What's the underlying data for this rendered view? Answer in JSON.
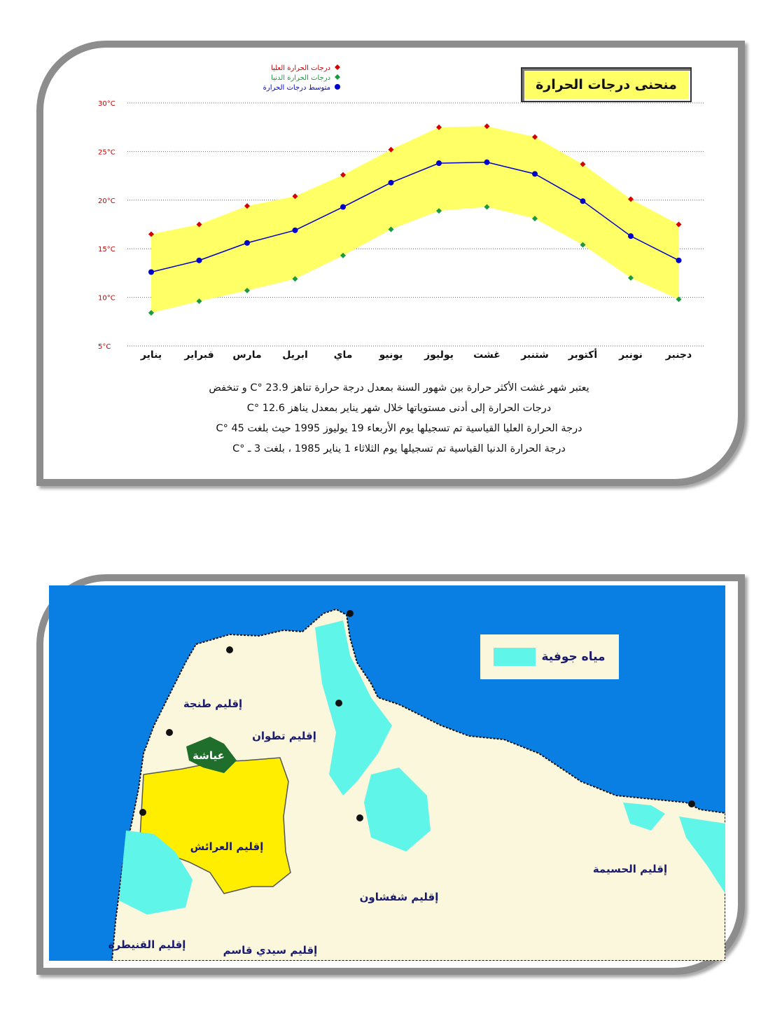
{
  "chart_data": {
    "type": "line",
    "title": "منحنى درجات الحرارة",
    "categories": [
      "يناير",
      "فبراير",
      "مارس",
      "ابريل",
      "ماي",
      "يونيو",
      "يوليوز",
      "غشت",
      "شتنبر",
      "أكتوبر",
      "نونبر",
      "دجنبر"
    ],
    "series": [
      {
        "name": "درجات الحرارة العليا",
        "color": "#d40000",
        "marker": "diamond",
        "values": [
          16.5,
          17.5,
          19.4,
          20.4,
          22.6,
          25.2,
          27.5,
          27.6,
          26.5,
          23.7,
          20.1,
          17.5
        ]
      },
      {
        "name": "درجات الحرارة الدنيا",
        "color": "#1a9a40",
        "marker": "diamond",
        "values": [
          8.4,
          9.6,
          10.7,
          11.9,
          14.3,
          17.0,
          18.9,
          19.3,
          18.1,
          15.4,
          12.0,
          9.8
        ]
      },
      {
        "name": "متوسط درجات الحرارة",
        "color": "#0000cc",
        "marker": "circle",
        "values": [
          12.6,
          13.8,
          15.6,
          16.9,
          19.3,
          21.8,
          23.8,
          23.9,
          22.7,
          19.9,
          16.3,
          13.8
        ]
      }
    ],
    "band_color": "#ffff66",
    "ylim": [
      5,
      30
    ],
    "yticks": [
      5,
      10,
      15,
      20,
      25,
      30
    ],
    "ytick_labels": [
      "5°C",
      "10°C",
      "15°C",
      "20°C",
      "25°C",
      "30°C"
    ],
    "grid": "dotted horizontal",
    "legend_position": "top-left"
  },
  "notes": [
    "يعتبر شهر غشت الأكثر حرارة بين شهور السنة بمعدل درجة حرارة تناهز 23.9 °C و تنخفض",
    "درجات الحرارة إلى أدنى مستوياتها خلال شهر يناير بمعدل يناهز 12.6 °C",
    "درجة الحرارة العليا القياسية تم تسجيلها يوم الأربعاء 19 يوليوز 1995 حيث بلغت 45 °C",
    "درجة الحرارة الدنيا القياسية تم تسجيلها يوم الثلاثاء 1 يناير 1985 ، بلغت 3 ـ °C"
  ],
  "map": {
    "legend_label": "مياه جوفية",
    "colors": {
      "sea": "#0a7fe3",
      "land": "#fbf7dd",
      "groundwater": "#5ff5e8",
      "larache": "#ffee00",
      "ayacha": "#1f6e2b"
    },
    "regions": [
      {
        "id": "tanger",
        "label": "إقليم طنجة"
      },
      {
        "id": "tetouan",
        "label": "إقليم تطوان"
      },
      {
        "id": "ayacha",
        "label": "عياشة"
      },
      {
        "id": "larache",
        "label": "إقليم العرائش"
      },
      {
        "id": "chefchaouen",
        "label": "إقليم شفشاون"
      },
      {
        "id": "hoceima",
        "label": "إقليم الحسيمة"
      },
      {
        "id": "kenitra",
        "label": "إقليم القنيطرة"
      },
      {
        "id": "sidi-kacem",
        "label": "إقليم سيدي قاسم"
      }
    ]
  }
}
